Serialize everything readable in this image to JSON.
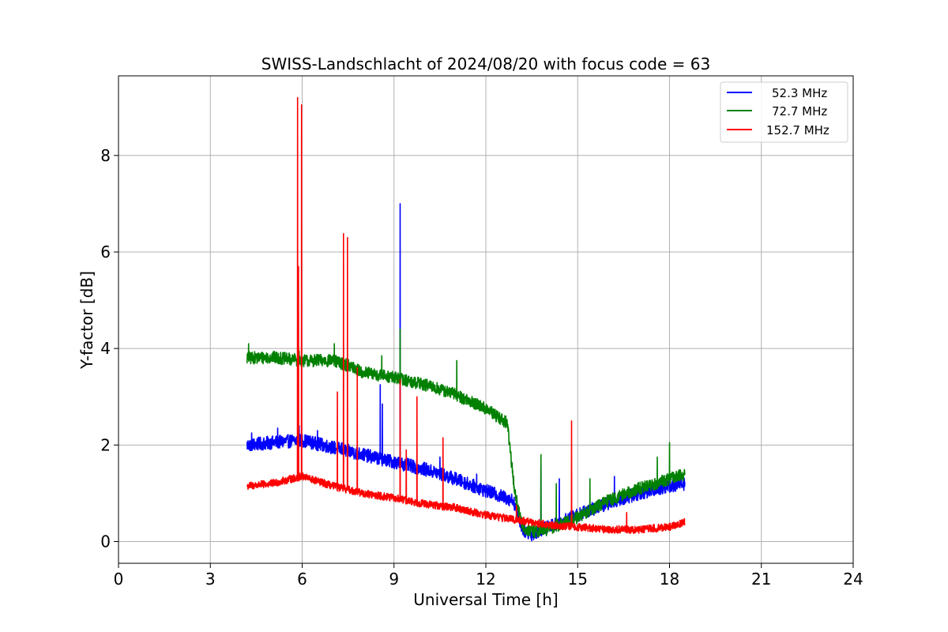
{
  "chart_data": {
    "type": "line",
    "title": "SWISS-Landschlacht of 2024/08/20 with focus code = 63",
    "xlabel": "Universal Time [h]",
    "ylabel": "Y-factor [dB]",
    "xlim": [
      0,
      24
    ],
    "ylim": [
      -0.45,
      9.65
    ],
    "xticks": [
      0,
      3,
      6,
      9,
      12,
      15,
      18,
      21,
      24
    ],
    "yticks": [
      0,
      2,
      4,
      6,
      8
    ],
    "grid": true,
    "legend_position": "top-right",
    "series": [
      {
        "name": "52.3 MHz",
        "color": "#0000ff",
        "base": [
          [
            4.2,
            2.0
          ],
          [
            5.0,
            2.05
          ],
          [
            6.0,
            2.1
          ],
          [
            7.0,
            1.95
          ],
          [
            8.0,
            1.8
          ],
          [
            9.0,
            1.65
          ],
          [
            10.0,
            1.5
          ],
          [
            11.0,
            1.3
          ],
          [
            12.0,
            1.05
          ],
          [
            12.9,
            0.85
          ],
          [
            13.2,
            0.25
          ],
          [
            13.5,
            0.15
          ],
          [
            14.0,
            0.3
          ],
          [
            15.0,
            0.55
          ],
          [
            16.0,
            0.8
          ],
          [
            17.0,
            1.0
          ],
          [
            18.0,
            1.15
          ],
          [
            18.5,
            1.2
          ]
        ],
        "noise": 0.14,
        "spikes": [
          [
            4.35,
            2.25
          ],
          [
            5.2,
            2.35
          ],
          [
            5.9,
            2.4
          ],
          [
            6.5,
            2.3
          ],
          [
            7.3,
            2.05
          ],
          [
            8.55,
            3.25
          ],
          [
            8.62,
            2.85
          ],
          [
            9.2,
            7.0
          ],
          [
            10.5,
            1.75
          ],
          [
            11.7,
            1.4
          ],
          [
            13.8,
            1.6
          ],
          [
            14.4,
            1.3
          ],
          [
            16.2,
            1.35
          ]
        ]
      },
      {
        "name": "72.7 MHz",
        "color": "#008000",
        "base": [
          [
            4.2,
            3.8
          ],
          [
            5.0,
            3.82
          ],
          [
            6.0,
            3.75
          ],
          [
            7.0,
            3.75
          ],
          [
            7.5,
            3.65
          ],
          [
            8.0,
            3.5
          ],
          [
            9.0,
            3.4
          ],
          [
            10.0,
            3.25
          ],
          [
            11.0,
            3.05
          ],
          [
            12.0,
            2.75
          ],
          [
            12.7,
            2.45
          ],
          [
            12.95,
            1.0
          ],
          [
            13.2,
            0.3
          ],
          [
            13.5,
            0.2
          ],
          [
            14.0,
            0.25
          ],
          [
            15.0,
            0.5
          ],
          [
            16.0,
            0.85
          ],
          [
            17.0,
            1.1
          ],
          [
            18.0,
            1.3
          ],
          [
            18.5,
            1.4
          ]
        ],
        "noise": 0.13,
        "spikes": [
          [
            4.25,
            4.1
          ],
          [
            5.9,
            3.95
          ],
          [
            7.05,
            4.1
          ],
          [
            8.6,
            3.85
          ],
          [
            9.2,
            4.4
          ],
          [
            11.05,
            3.75
          ],
          [
            13.8,
            1.8
          ],
          [
            14.3,
            1.2
          ],
          [
            15.4,
            1.3
          ],
          [
            17.6,
            1.75
          ],
          [
            18.0,
            2.05
          ]
        ]
      },
      {
        "name": "152.7 MHz",
        "color": "#ff0000",
        "base": [
          [
            4.2,
            1.15
          ],
          [
            5.0,
            1.2
          ],
          [
            6.0,
            1.35
          ],
          [
            7.0,
            1.15
          ],
          [
            8.0,
            1.0
          ],
          [
            9.0,
            0.9
          ],
          [
            10.0,
            0.78
          ],
          [
            11.0,
            0.7
          ],
          [
            12.0,
            0.55
          ],
          [
            13.0,
            0.45
          ],
          [
            14.0,
            0.35
          ],
          [
            15.0,
            0.3
          ],
          [
            16.0,
            0.25
          ],
          [
            17.0,
            0.25
          ],
          [
            18.0,
            0.3
          ],
          [
            18.5,
            0.4
          ]
        ],
        "noise": 0.08,
        "spikes": [
          [
            5.85,
            9.2
          ],
          [
            5.88,
            5.7
          ],
          [
            5.98,
            9.05
          ],
          [
            7.15,
            3.1
          ],
          [
            7.35,
            6.38
          ],
          [
            7.48,
            6.3
          ],
          [
            7.8,
            3.6
          ],
          [
            9.2,
            3.35
          ],
          [
            9.4,
            1.9
          ],
          [
            9.75,
            3.0
          ],
          [
            10.6,
            2.15
          ],
          [
            13.0,
            0.75
          ],
          [
            14.8,
            2.5
          ],
          [
            16.6,
            0.6
          ]
        ]
      }
    ]
  }
}
